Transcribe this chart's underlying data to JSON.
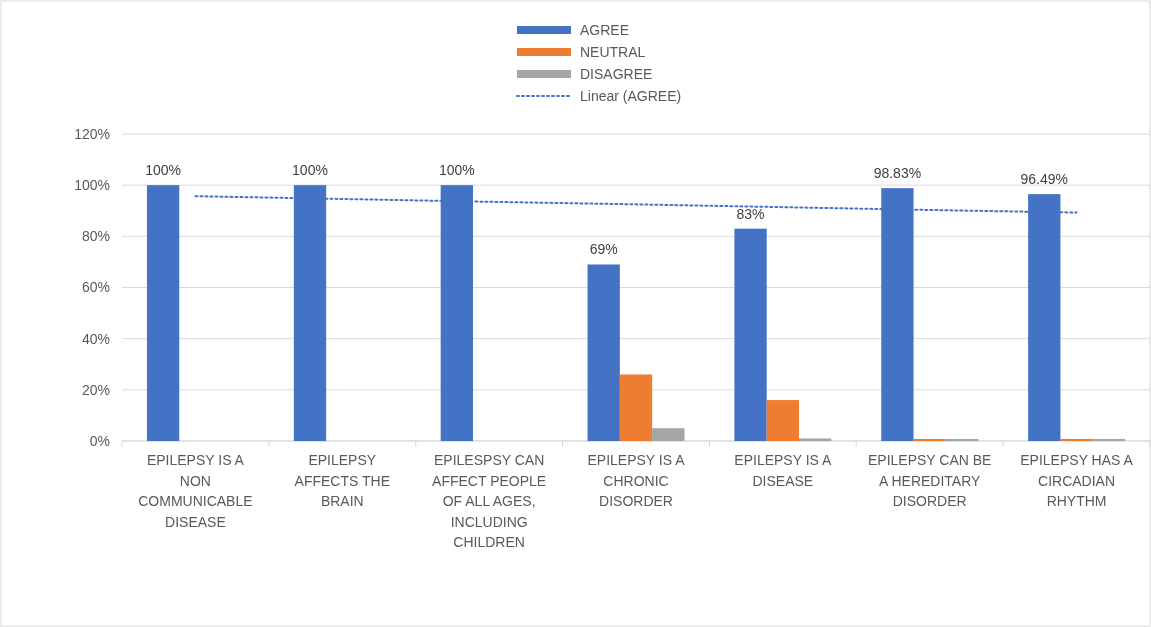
{
  "chart_data": {
    "type": "bar",
    "categories": [
      "EPILEPSY IS A NON COMMUNICABLE DISEASE",
      "EPILEPSY AFFECTS THE BRAIN",
      "EPILESPSY CAN AFFECT PEOPLE OF ALL AGES, INCLUDING CHILDREN",
      "EPILEPSY IS A CHRONIC DISORDER",
      "EPILEPSY IS A DISEASE",
      "EPILEPSY CAN BE A HEREDITARY DISORDER",
      "EPILEPSY HAS A CIRCADIAN RHYTHM"
    ],
    "series": [
      {
        "name": "AGREE",
        "color": "#4472c4",
        "values": [
          100,
          100,
          100,
          69,
          83,
          98.83,
          96.49
        ],
        "value_labels": [
          "100%",
          "100%",
          "100%",
          "69%",
          "83%",
          "98.83%",
          "96.49%"
        ]
      },
      {
        "name": "NEUTRAL",
        "color": "#ed7d31",
        "values": [
          0,
          0,
          0,
          26,
          16,
          0.8,
          0.8
        ]
      },
      {
        "name": "DISAGREE",
        "color": "#a5a5a5",
        "values": [
          0,
          0,
          0,
          5,
          1,
          0.8,
          0.8
        ]
      },
      {
        "name": "Linear (AGREE)",
        "type": "line",
        "color": "#4472c4",
        "line_style": "dotted",
        "marker": "none",
        "values": [
          95.7,
          94.6,
          93.5,
          92.5,
          91.4,
          90.3,
          89.3
        ]
      }
    ],
    "ylim": [
      0,
      120
    ],
    "yticks": [
      {
        "value": 0,
        "label": "0%"
      },
      {
        "value": 20,
        "label": "20%"
      },
      {
        "value": 40,
        "label": "40%"
      },
      {
        "value": 60,
        "label": "60%"
      },
      {
        "value": 80,
        "label": "80%"
      },
      {
        "value": 100,
        "label": "100%"
      },
      {
        "value": 120,
        "label": "120%"
      }
    ],
    "grid": "y",
    "legend": "top"
  }
}
